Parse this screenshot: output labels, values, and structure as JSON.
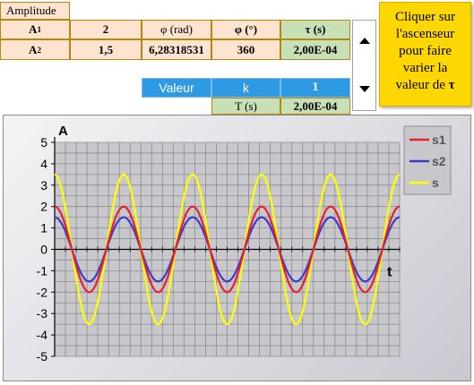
{
  "table": {
    "amplitude_header": "Amplitude",
    "a1_label": "A",
    "a1_sub": "1",
    "a1_value": "2",
    "a2_label": "A",
    "a2_sub": "2",
    "a2_value": "1,5",
    "phi_rad_header": "φ (rad)",
    "phi_rad_value": "6,28318531",
    "phi_deg_header": "φ (°)",
    "phi_deg_value": "360",
    "tau_header": "τ (s)",
    "tau_value": "2,00E-04",
    "valeur_label": "Valeur",
    "k_label": "k",
    "k_value": "1",
    "T_label": "T (s)",
    "T_value": "2,00E-04"
  },
  "note": {
    "line1": "Cliquer sur",
    "line2": "l'ascenseur",
    "line3": "pour faire",
    "line4": "varier la",
    "line5_text": "valeur de ",
    "line5_symbol": "τ"
  },
  "colors": {
    "s1": "#e8202a",
    "s2": "#3a3acc",
    "s": "#ffff00",
    "note_bg": "#ffd700",
    "header_cell": "#fde4d0",
    "blue_cell": "#2e9ae4",
    "green_cell": "#c7e0b5"
  },
  "chart_data": {
    "type": "line",
    "ylabel": "A",
    "xlabel": "t",
    "ylim": [
      -5,
      5
    ],
    "yticks": [
      "5",
      "4",
      "3",
      "2",
      "1",
      "0",
      "-1",
      "-2",
      "-3",
      "-4",
      "-5"
    ],
    "grid": true,
    "legend_position": "top-right",
    "cycles": 5,
    "series": [
      {
        "name": "s1",
        "amplitude": 2
      },
      {
        "name": "s2",
        "amplitude": 1.5
      },
      {
        "name": "s",
        "amplitude": 3.5
      }
    ]
  }
}
